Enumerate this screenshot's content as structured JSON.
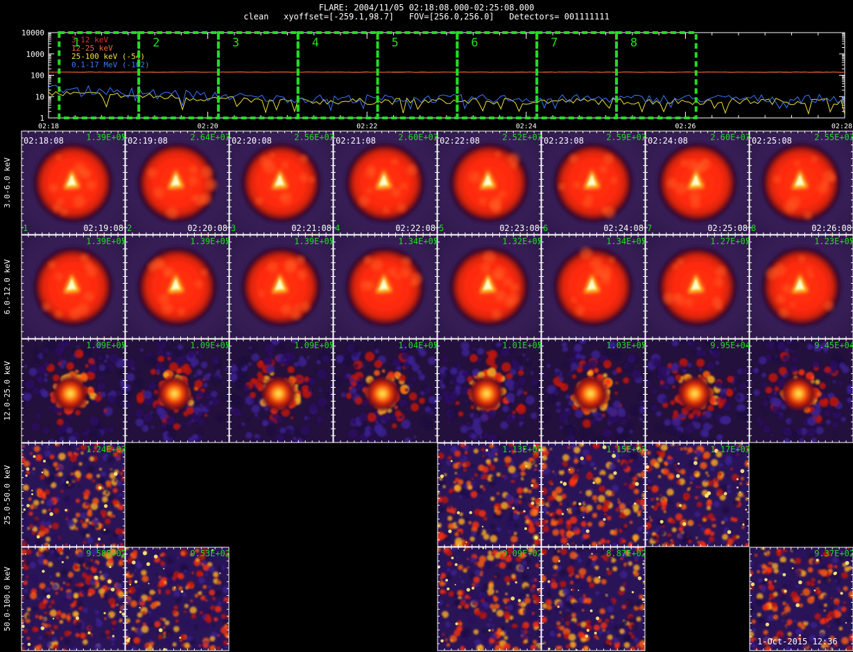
{
  "header": {
    "line1": "FLARE: 2004/11/05 02:18:08.000-02:25:08.000",
    "line2": "clean   xyoffset=[-259.1,98.7]   FOV=[256.0,256.0]   Detectors= 001111111"
  },
  "footer": {
    "timestamp": "1-Oct-2015 12:36"
  },
  "chart_data": [
    {
      "type": "line",
      "x_axis": {
        "start": "02:18",
        "end": "02:28",
        "ticks": [
          "02:18",
          "02:20",
          "02:22",
          "02:24",
          "02:26",
          "02:28"
        ]
      },
      "y_axis": {
        "scale": "log",
        "range": [
          1,
          10000
        ],
        "ticks": [
          "10000",
          "1000",
          "100",
          "10",
          "1"
        ]
      },
      "series": [
        {
          "name": "3-12 keV",
          "color": "#e8322b",
          "typical_level": 140
        },
        {
          "name": "12-25 keV",
          "color": "#ef6b3a",
          "typical_level": 140
        },
        {
          "name": "25-100 keV (-54)",
          "color": "#f2e33b",
          "typical_level": 6
        },
        {
          "name": "0.1-17 MeV (-102)",
          "color": "#3b78ff",
          "typical_level": 8
        }
      ],
      "intervals": [
        {
          "label": "1",
          "start": "02:18:08",
          "end": "02:19:08"
        },
        {
          "label": "2",
          "start": "02:19:08",
          "end": "02:20:08"
        },
        {
          "label": "3",
          "start": "02:20:08",
          "end": "02:21:08"
        },
        {
          "label": "4",
          "start": "02:21:08",
          "end": "02:22:08"
        },
        {
          "label": "5",
          "start": "02:22:08",
          "end": "02:23:08"
        },
        {
          "label": "6",
          "start": "02:23:08",
          "end": "02:24:08"
        },
        {
          "label": "7",
          "start": "02:24:08",
          "end": "02:25:08"
        },
        {
          "label": "8",
          "start": "02:25:08",
          "end": "02:26:08"
        }
      ],
      "interval_color": "#22dd22"
    },
    {
      "type": "heatmap",
      "rows": [
        "3.0-6.0 keV",
        "6.0-12.0 keV",
        "12.0-25.0 keV",
        "25.0-50.0 keV",
        "50.0-100.0 keV"
      ],
      "columns": [
        {
          "index": "1",
          "start": "02:18:08",
          "end": "02:19:08"
        },
        {
          "index": "2",
          "start": "02:19:08",
          "end": "02:20:08"
        },
        {
          "index": "3",
          "start": "02:20:08",
          "end": "02:21:08"
        },
        {
          "index": "4",
          "start": "02:21:08",
          "end": "02:22:08"
        },
        {
          "index": "5",
          "start": "02:22:08",
          "end": "02:23:08"
        },
        {
          "index": "6",
          "start": "02:23:08",
          "end": "02:24:08"
        },
        {
          "index": "7",
          "start": "02:24:08",
          "end": "02:25:08"
        },
        {
          "index": "8",
          "start": "02:25:08",
          "end": "02:26:08"
        }
      ],
      "peak_values": [
        [
          "1.39E+05",
          "2.64E+03",
          "2.56E+03",
          "2.60E+03",
          "2.52E+03",
          "2.59E+03",
          "2.60E+03",
          "2.55E+03"
        ],
        [
          "1.39E+05",
          "1.39E+05",
          "1.39E+05",
          "1.34E+05",
          "1.32E+05",
          "1.34E+05",
          "1.27E+05",
          "1.23E+05"
        ],
        [
          "1.09E+05",
          "1.09E+05",
          "1.09E+05",
          "1.04E+05",
          "1.01E+05",
          "1.03E+05",
          "9.95E+04",
          "9.45E+04"
        ],
        [
          "1.24E+03",
          null,
          null,
          null,
          "1.13E+03",
          "1.15E+03",
          "1.17E+03",
          null
        ],
        [
          "9.58E+02",
          "9.53E+02",
          null,
          null,
          "9.09E+02",
          "8.87E+02",
          null,
          "9.37E+02"
        ]
      ],
      "morphology": [
        "ring",
        "ring",
        "clump",
        "noise",
        "noise"
      ],
      "value_color": "#22dd22"
    }
  ]
}
